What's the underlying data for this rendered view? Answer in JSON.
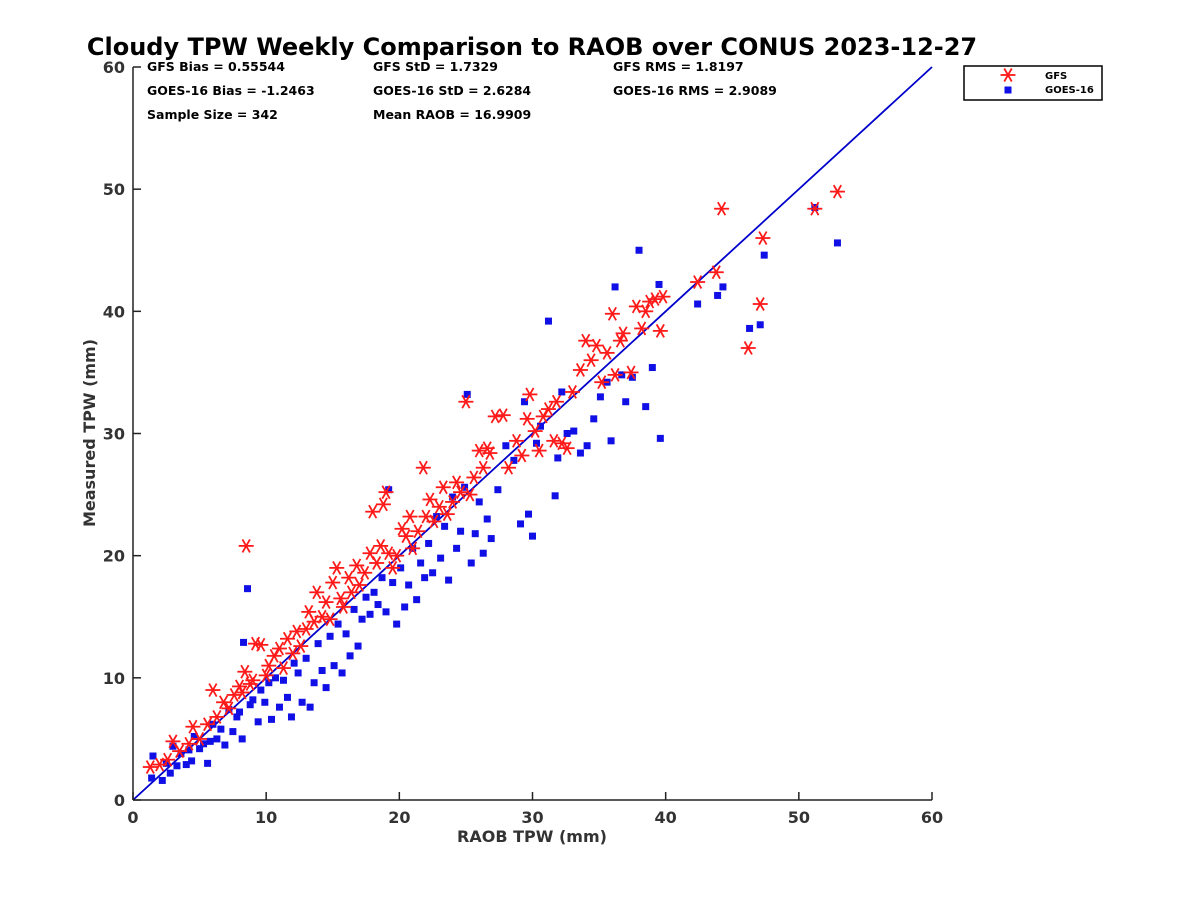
{
  "chart_data": {
    "type": "scatter",
    "title": "Cloudy TPW Weekly Comparison to RAOB over CONUS 2023-12-27",
    "xlabel": "RAOB TPW (mm)",
    "ylabel": "Measured TPW (mm)",
    "xlim": [
      0,
      60
    ],
    "ylim": [
      0,
      60
    ],
    "xticks": [
      0,
      10,
      20,
      30,
      40,
      50,
      60
    ],
    "yticks": [
      0,
      10,
      20,
      30,
      40,
      50,
      60
    ],
    "grid": false,
    "legend_position": "outside-top-right",
    "reference_line": {
      "x": [
        0,
        60
      ],
      "y": [
        0,
        60
      ],
      "color": "#0000cc"
    },
    "stats": [
      "GFS Bias = 0.55544",
      "GFS StD = 1.7329",
      "GFS RMS = 1.8197",
      "GOES-16 Bias = -1.2463",
      "GOES-16 StD = 2.6284",
      "GOES-16 RMS = 2.9089",
      "Sample Size = 342",
      "Mean RAOB = 16.9909"
    ],
    "series": [
      {
        "name": "GFS",
        "marker": "asterisk",
        "color": "#ff1a1a",
        "points": [
          [
            1.3,
            2.7
          ],
          [
            2.0,
            2.9
          ],
          [
            2.6,
            3.3
          ],
          [
            3.0,
            4.8
          ],
          [
            3.5,
            4.0
          ],
          [
            4.2,
            4.6
          ],
          [
            4.5,
            6.0
          ],
          [
            5.0,
            5.0
          ],
          [
            5.6,
            6.2
          ],
          [
            6.0,
            9.0
          ],
          [
            6.3,
            6.8
          ],
          [
            6.8,
            8.0
          ],
          [
            7.2,
            7.5
          ],
          [
            7.6,
            8.6
          ],
          [
            8.0,
            9.3
          ],
          [
            8.2,
            8.8
          ],
          [
            8.4,
            10.5
          ],
          [
            8.5,
            20.8
          ],
          [
            8.8,
            9.5
          ],
          [
            9.0,
            9.8
          ],
          [
            9.2,
            12.8
          ],
          [
            9.6,
            12.7
          ],
          [
            10.0,
            10.2
          ],
          [
            10.2,
            11.0
          ],
          [
            10.6,
            11.8
          ],
          [
            11.0,
            12.4
          ],
          [
            11.3,
            10.8
          ],
          [
            11.6,
            13.2
          ],
          [
            12.0,
            12.0
          ],
          [
            12.3,
            13.8
          ],
          [
            12.6,
            12.6
          ],
          [
            13.0,
            14.0
          ],
          [
            13.2,
            15.4
          ],
          [
            13.6,
            14.6
          ],
          [
            13.8,
            17.0
          ],
          [
            14.2,
            15.0
          ],
          [
            14.5,
            16.2
          ],
          [
            14.8,
            14.8
          ],
          [
            15.0,
            17.8
          ],
          [
            15.3,
            19.0
          ],
          [
            15.6,
            16.5
          ],
          [
            15.8,
            15.8
          ],
          [
            16.2,
            18.2
          ],
          [
            16.4,
            17.0
          ],
          [
            16.8,
            19.2
          ],
          [
            17.0,
            17.6
          ],
          [
            17.4,
            18.6
          ],
          [
            17.8,
            20.2
          ],
          [
            18.0,
            23.6
          ],
          [
            18.3,
            19.4
          ],
          [
            18.6,
            20.8
          ],
          [
            18.8,
            24.2
          ],
          [
            19.0,
            25.2
          ],
          [
            19.2,
            20.2
          ],
          [
            19.5,
            19.0
          ],
          [
            19.8,
            20.0
          ],
          [
            20.2,
            22.2
          ],
          [
            20.5,
            21.6
          ],
          [
            20.8,
            23.2
          ],
          [
            21.0,
            20.6
          ],
          [
            21.4,
            22.0
          ],
          [
            21.8,
            27.2
          ],
          [
            22.0,
            23.2
          ],
          [
            22.3,
            24.6
          ],
          [
            22.6,
            22.8
          ],
          [
            23.0,
            24.0
          ],
          [
            23.3,
            25.6
          ],
          [
            23.6,
            23.4
          ],
          [
            24.0,
            24.4
          ],
          [
            24.3,
            26.0
          ],
          [
            24.6,
            25.2
          ],
          [
            25.0,
            32.6
          ],
          [
            25.3,
            25.0
          ],
          [
            25.6,
            26.4
          ],
          [
            26.0,
            28.6
          ],
          [
            26.3,
            27.2
          ],
          [
            26.6,
            28.8
          ],
          [
            26.8,
            28.4
          ],
          [
            27.2,
            31.4
          ],
          [
            27.8,
            31.5
          ],
          [
            28.2,
            27.2
          ],
          [
            28.8,
            29.4
          ],
          [
            29.2,
            28.2
          ],
          [
            29.6,
            31.2
          ],
          [
            29.8,
            33.2
          ],
          [
            30.2,
            30.2
          ],
          [
            30.5,
            28.6
          ],
          [
            30.8,
            31.4
          ],
          [
            31.2,
            32.0
          ],
          [
            31.6,
            29.4
          ],
          [
            31.8,
            32.6
          ],
          [
            32.2,
            29.2
          ],
          [
            32.6,
            28.8
          ],
          [
            33.0,
            33.4
          ],
          [
            33.6,
            35.2
          ],
          [
            34.0,
            37.6
          ],
          [
            34.4,
            36.0
          ],
          [
            34.8,
            37.2
          ],
          [
            35.2,
            34.2
          ],
          [
            35.6,
            36.6
          ],
          [
            36.0,
            39.8
          ],
          [
            36.2,
            34.8
          ],
          [
            36.6,
            37.6
          ],
          [
            36.8,
            38.2
          ],
          [
            37.4,
            35.0
          ],
          [
            37.8,
            40.4
          ],
          [
            38.2,
            38.6
          ],
          [
            38.5,
            40.0
          ],
          [
            38.8,
            40.8
          ],
          [
            39.2,
            41.0
          ],
          [
            39.6,
            38.4
          ],
          [
            39.8,
            41.2
          ],
          [
            42.4,
            42.4
          ],
          [
            43.8,
            43.2
          ],
          [
            44.2,
            48.4
          ],
          [
            46.2,
            37.0
          ],
          [
            47.1,
            40.6
          ],
          [
            47.3,
            46.0
          ],
          [
            51.2,
            48.4
          ],
          [
            52.9,
            49.8
          ]
        ]
      },
      {
        "name": "GOES-16",
        "marker": "square",
        "color": "#1010e6",
        "points": [
          [
            1.4,
            1.8
          ],
          [
            1.5,
            3.6
          ],
          [
            2.2,
            1.6
          ],
          [
            2.5,
            3.0
          ],
          [
            2.8,
            2.2
          ],
          [
            3.0,
            4.4
          ],
          [
            3.3,
            2.8
          ],
          [
            3.6,
            3.8
          ],
          [
            4.0,
            2.9
          ],
          [
            4.2,
            4.1
          ],
          [
            4.4,
            3.2
          ],
          [
            4.6,
            5.2
          ],
          [
            5.0,
            4.2
          ],
          [
            5.3,
            4.6
          ],
          [
            5.6,
            3.0
          ],
          [
            5.8,
            4.8
          ],
          [
            6.0,
            6.2
          ],
          [
            6.3,
            5.0
          ],
          [
            6.6,
            5.8
          ],
          [
            6.9,
            4.5
          ],
          [
            7.2,
            7.4
          ],
          [
            7.5,
            5.6
          ],
          [
            7.8,
            6.8
          ],
          [
            8.0,
            7.2
          ],
          [
            8.2,
            5.0
          ],
          [
            8.3,
            12.9
          ],
          [
            8.6,
            17.3
          ],
          [
            8.8,
            7.8
          ],
          [
            9.0,
            8.2
          ],
          [
            9.4,
            6.4
          ],
          [
            9.6,
            9.0
          ],
          [
            9.9,
            8.0
          ],
          [
            10.2,
            9.6
          ],
          [
            10.4,
            6.6
          ],
          [
            10.7,
            10.0
          ],
          [
            11.0,
            7.6
          ],
          [
            11.3,
            9.8
          ],
          [
            11.6,
            8.4
          ],
          [
            11.9,
            6.8
          ],
          [
            12.1,
            11.2
          ],
          [
            12.4,
            10.4
          ],
          [
            12.7,
            8.0
          ],
          [
            13.0,
            11.6
          ],
          [
            13.3,
            7.6
          ],
          [
            13.6,
            9.6
          ],
          [
            13.9,
            12.8
          ],
          [
            14.2,
            10.6
          ],
          [
            14.5,
            9.2
          ],
          [
            14.8,
            13.4
          ],
          [
            15.1,
            11.0
          ],
          [
            15.4,
            14.4
          ],
          [
            15.7,
            10.4
          ],
          [
            16.0,
            13.6
          ],
          [
            16.3,
            11.8
          ],
          [
            16.6,
            15.6
          ],
          [
            16.9,
            12.6
          ],
          [
            17.2,
            14.8
          ],
          [
            17.5,
            16.6
          ],
          [
            17.8,
            15.2
          ],
          [
            18.1,
            17.0
          ],
          [
            18.4,
            16.0
          ],
          [
            18.7,
            18.2
          ],
          [
            19.0,
            15.4
          ],
          [
            19.2,
            25.4
          ],
          [
            19.5,
            17.8
          ],
          [
            19.8,
            14.4
          ],
          [
            20.1,
            19.0
          ],
          [
            20.4,
            15.8
          ],
          [
            20.7,
            17.6
          ],
          [
            21.0,
            20.6
          ],
          [
            21.3,
            16.4
          ],
          [
            21.6,
            19.4
          ],
          [
            21.9,
            18.2
          ],
          [
            22.2,
            21.0
          ],
          [
            22.5,
            18.6
          ],
          [
            22.8,
            23.2
          ],
          [
            23.1,
            19.8
          ],
          [
            23.4,
            22.4
          ],
          [
            23.7,
            18.0
          ],
          [
            24.0,
            24.8
          ],
          [
            24.3,
            20.6
          ],
          [
            24.6,
            22.0
          ],
          [
            24.9,
            25.6
          ],
          [
            25.1,
            33.2
          ],
          [
            25.4,
            19.4
          ],
          [
            25.7,
            21.8
          ],
          [
            26.0,
            24.4
          ],
          [
            26.3,
            20.2
          ],
          [
            26.6,
            23.0
          ],
          [
            26.9,
            21.4
          ],
          [
            27.4,
            25.4
          ],
          [
            28.0,
            29.0
          ],
          [
            28.6,
            27.8
          ],
          [
            29.1,
            22.6
          ],
          [
            29.4,
            32.6
          ],
          [
            29.7,
            23.4
          ],
          [
            30.0,
            21.6
          ],
          [
            30.3,
            29.2
          ],
          [
            30.6,
            30.6
          ],
          [
            31.2,
            39.2
          ],
          [
            31.7,
            24.9
          ],
          [
            31.9,
            28.0
          ],
          [
            32.2,
            33.4
          ],
          [
            32.6,
            30.0
          ],
          [
            33.1,
            30.2
          ],
          [
            33.6,
            28.4
          ],
          [
            34.1,
            29.0
          ],
          [
            34.6,
            31.2
          ],
          [
            35.1,
            33.0
          ],
          [
            35.6,
            34.2
          ],
          [
            35.9,
            29.4
          ],
          [
            36.2,
            42.0
          ],
          [
            36.7,
            34.8
          ],
          [
            37.0,
            32.6
          ],
          [
            37.5,
            34.6
          ],
          [
            38.0,
            45.0
          ],
          [
            38.5,
            32.2
          ],
          [
            39.0,
            35.4
          ],
          [
            39.5,
            42.2
          ],
          [
            39.6,
            29.6
          ],
          [
            42.4,
            40.6
          ],
          [
            43.9,
            41.3
          ],
          [
            44.3,
            42.0
          ],
          [
            46.3,
            38.6
          ],
          [
            47.1,
            38.9
          ],
          [
            47.4,
            44.6
          ],
          [
            51.2,
            48.5
          ],
          [
            52.9,
            45.6
          ]
        ]
      }
    ]
  }
}
